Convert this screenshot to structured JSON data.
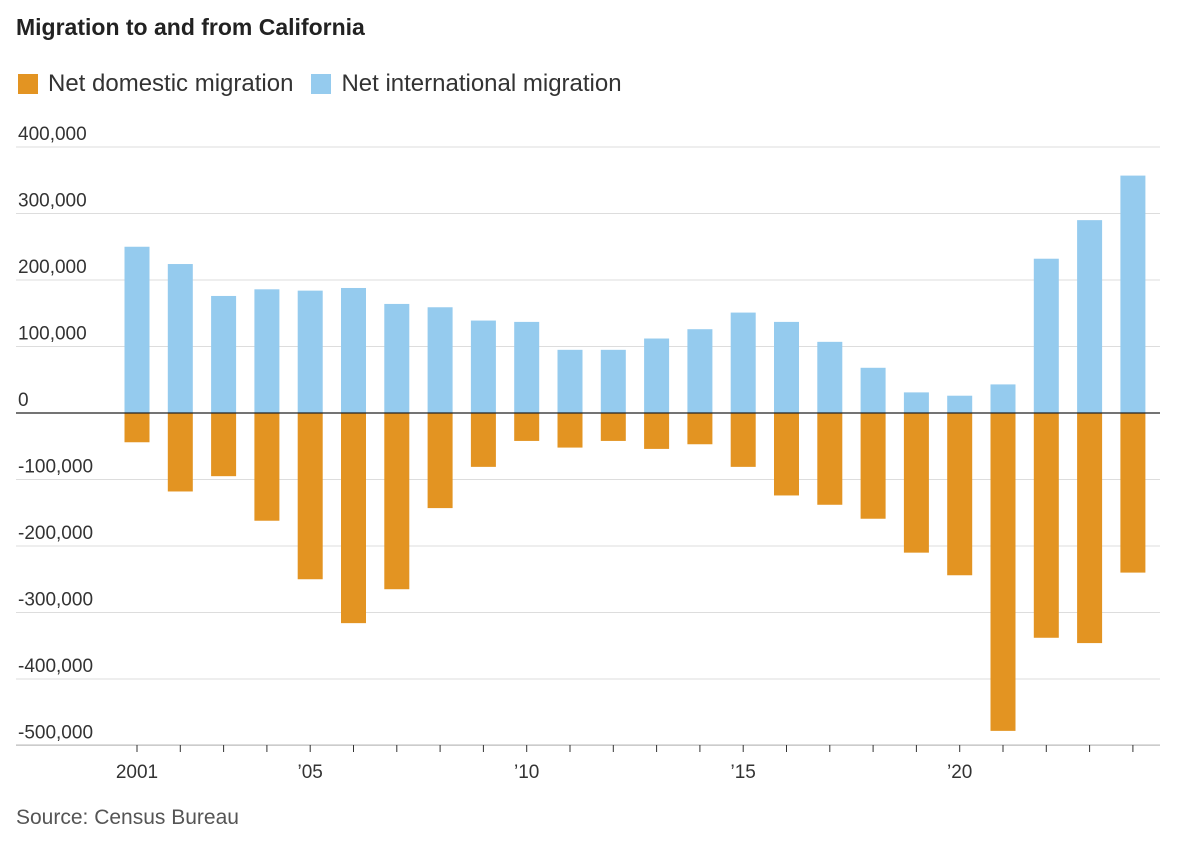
{
  "chart_data": {
    "type": "bar",
    "title": "Migration to and from California",
    "source": "Source: Census Bureau",
    "x": [
      2001,
      2002,
      2003,
      2004,
      2005,
      2006,
      2007,
      2008,
      2009,
      2010,
      2011,
      2012,
      2013,
      2014,
      2015,
      2016,
      2017,
      2018,
      2019,
      2020,
      2021,
      2022,
      2023,
      2024
    ],
    "x_tick_labels": [
      {
        "year": 2001,
        "label": "2001"
      },
      {
        "year": 2005,
        "label": "’05"
      },
      {
        "year": 2010,
        "label": "’10"
      },
      {
        "year": 2015,
        "label": "’15"
      },
      {
        "year": 2020,
        "label": "’20"
      }
    ],
    "series": [
      {
        "name": "Net domestic migration",
        "color": "#E39422",
        "values": [
          -44000,
          -118000,
          -95000,
          -162000,
          -250000,
          -316000,
          -265000,
          -143000,
          -81000,
          -42000,
          -52000,
          -42000,
          -54000,
          -47000,
          -81000,
          -124000,
          -138000,
          -159000,
          -210000,
          -244000,
          -478000,
          -338000,
          -346000,
          -240000
        ]
      },
      {
        "name": "Net international migration",
        "color": "#95CBEE",
        "values": [
          250000,
          224000,
          176000,
          186000,
          184000,
          188000,
          164000,
          159000,
          139000,
          137000,
          95000,
          95000,
          112000,
          126000,
          151000,
          137000,
          107000,
          68000,
          31000,
          26000,
          43000,
          232000,
          290000,
          357000
        ]
      }
    ],
    "ylim": [
      -500000,
      400000
    ],
    "yticks": [
      400000,
      300000,
      200000,
      100000,
      0,
      -100000,
      -200000,
      -300000,
      -400000,
      -500000
    ],
    "ytick_labels": [
      "400,000",
      "300,000",
      "200,000",
      "100,000",
      "0",
      "-100,000",
      "-200,000",
      "-300,000",
      "-400,000",
      "-500,000"
    ],
    "xlabel": "",
    "ylabel": "",
    "grid": true,
    "legend": "top-left"
  }
}
